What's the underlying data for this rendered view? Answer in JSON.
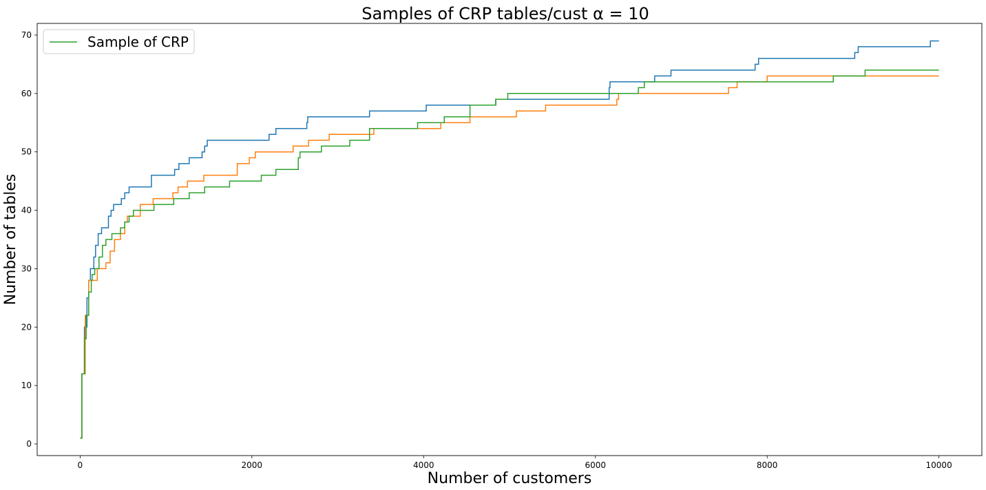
{
  "chart_data": {
    "type": "line",
    "title": "Samples of CRP tables/cust α = 10",
    "xlabel": "Number of customers",
    "ylabel": "Number of tables",
    "xlim": [
      -500,
      10500
    ],
    "ylim": [
      -2,
      72
    ],
    "xticks": [
      0,
      2000,
      4000,
      6000,
      8000,
      10000
    ],
    "yticks": [
      0,
      10,
      20,
      30,
      40,
      50,
      60,
      70
    ],
    "grid": false,
    "legend": {
      "placement": "top-left",
      "entries": [
        "Sample of CRP"
      ]
    },
    "series": [
      {
        "color": "#1f77b4",
        "steps": [
          [
            0,
            1
          ],
          [
            20,
            12
          ],
          [
            50,
            20
          ],
          [
            80,
            25
          ],
          [
            100,
            28
          ],
          [
            120,
            30
          ],
          [
            160,
            32
          ],
          [
            180,
            34
          ],
          [
            210,
            36
          ],
          [
            250,
            37
          ],
          [
            330,
            39
          ],
          [
            360,
            40
          ],
          [
            390,
            41
          ],
          [
            480,
            42
          ],
          [
            520,
            43
          ],
          [
            570,
            44
          ],
          [
            830,
            46
          ],
          [
            1100,
            47
          ],
          [
            1150,
            48
          ],
          [
            1270,
            49
          ],
          [
            1420,
            50
          ],
          [
            1450,
            51
          ],
          [
            1480,
            52
          ],
          [
            2200,
            53
          ],
          [
            2280,
            54
          ],
          [
            2640,
            55
          ],
          [
            2650,
            56
          ],
          [
            3370,
            57
          ],
          [
            4030,
            58
          ],
          [
            4840,
            59
          ],
          [
            5680,
            59
          ],
          [
            6160,
            61
          ],
          [
            6170,
            62
          ],
          [
            6690,
            63
          ],
          [
            6880,
            64
          ],
          [
            7860,
            65
          ],
          [
            7900,
            66
          ],
          [
            9020,
            67
          ],
          [
            9060,
            68
          ],
          [
            9900,
            69
          ],
          [
            10000,
            69
          ]
        ]
      },
      {
        "color": "#ff7f0e",
        "steps": [
          [
            0,
            1
          ],
          [
            20,
            12
          ],
          [
            60,
            22
          ],
          [
            100,
            28
          ],
          [
            200,
            30
          ],
          [
            300,
            31
          ],
          [
            350,
            33
          ],
          [
            400,
            35
          ],
          [
            470,
            36
          ],
          [
            520,
            38
          ],
          [
            550,
            39
          ],
          [
            700,
            41
          ],
          [
            850,
            42
          ],
          [
            1080,
            43
          ],
          [
            1140,
            44
          ],
          [
            1250,
            45
          ],
          [
            1440,
            46
          ],
          [
            1830,
            48
          ],
          [
            1970,
            49
          ],
          [
            2040,
            50
          ],
          [
            2480,
            51
          ],
          [
            2660,
            52
          ],
          [
            2900,
            53
          ],
          [
            3420,
            54
          ],
          [
            4200,
            55
          ],
          [
            4540,
            56
          ],
          [
            5080,
            57
          ],
          [
            5420,
            58
          ],
          [
            6250,
            59
          ],
          [
            6270,
            60
          ],
          [
            7550,
            61
          ],
          [
            7650,
            62
          ],
          [
            8000,
            63
          ],
          [
            10000,
            63
          ]
        ]
      },
      {
        "color": "#2ca02c",
        "steps": [
          [
            0,
            1
          ],
          [
            20,
            12
          ],
          [
            50,
            18
          ],
          [
            70,
            22
          ],
          [
            100,
            26
          ],
          [
            130,
            28
          ],
          [
            140,
            29
          ],
          [
            170,
            30
          ],
          [
            220,
            32
          ],
          [
            260,
            34
          ],
          [
            300,
            35
          ],
          [
            370,
            36
          ],
          [
            470,
            37
          ],
          [
            520,
            38
          ],
          [
            570,
            39
          ],
          [
            620,
            40
          ],
          [
            860,
            41
          ],
          [
            1090,
            42
          ],
          [
            1270,
            43
          ],
          [
            1450,
            44
          ],
          [
            1740,
            45
          ],
          [
            2110,
            46
          ],
          [
            2280,
            47
          ],
          [
            2540,
            49
          ],
          [
            2560,
            50
          ],
          [
            2810,
            51
          ],
          [
            3140,
            52
          ],
          [
            3370,
            54
          ],
          [
            3930,
            55
          ],
          [
            4240,
            56
          ],
          [
            4540,
            58
          ],
          [
            4840,
            59
          ],
          [
            4980,
            60
          ],
          [
            6500,
            61
          ],
          [
            6570,
            62
          ],
          [
            8770,
            63
          ],
          [
            9140,
            64
          ],
          [
            10000,
            64
          ]
        ]
      }
    ]
  }
}
